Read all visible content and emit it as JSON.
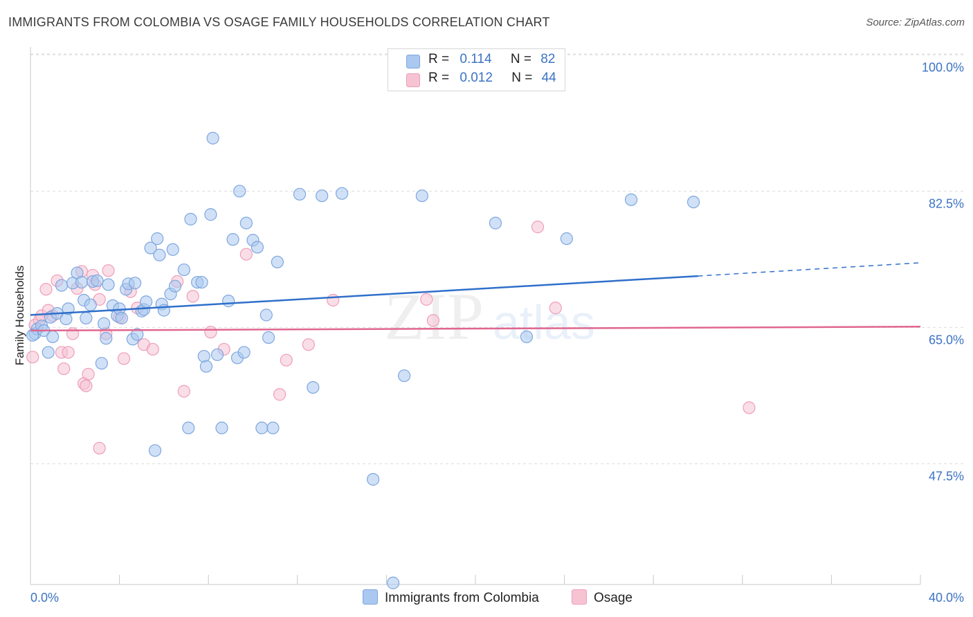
{
  "title": "IMMIGRANTS FROM COLOMBIA VS OSAGE FAMILY HOUSEHOLDS CORRELATION CHART",
  "source": "Source: ZipAtlas.com",
  "watermark": {
    "zip": "ZIP",
    "atlas": "atlas"
  },
  "colors": {
    "blue_fill": "#aac8f0",
    "blue_stroke": "#7ea6de",
    "blue_line": "#2f6fca",
    "pink_fill": "#f6c3d3",
    "pink_stroke": "#ee9db8",
    "pink_line": "#e0668f",
    "axis_label": "#3b73c4",
    "grid": "#dcdcdc"
  },
  "legend": {
    "rows": [
      {
        "r_label": "R =",
        "r_value": "0.114",
        "n_label": "N =",
        "n_value": "82"
      },
      {
        "r_label": "R =",
        "r_value": "0.012",
        "n_label": "N =",
        "n_value": "44"
      }
    ]
  },
  "bottom_legend": {
    "series1": "Immigrants from Colombia",
    "series2": "Osage"
  },
  "chart_data": {
    "type": "scatter",
    "title": "IMMIGRANTS FROM COLOMBIA VS OSAGE FAMILY HOUSEHOLDS CORRELATION CHART",
    "xlabel": "",
    "ylabel": "Family Households",
    "xlim": [
      0,
      40
    ],
    "ylim": [
      32,
      101
    ],
    "x_tick_labels": [
      "0.0%",
      "40.0%"
    ],
    "y_ticks": [
      47.5,
      65.0,
      82.5,
      100.0
    ],
    "y_tick_labels": [
      "47.5%",
      "65.0%",
      "82.5%",
      "100.0%"
    ],
    "series": [
      {
        "name": "Immigrants from Colombia",
        "R": 0.114,
        "N": 82,
        "trend": {
          "x0": 0,
          "y0": 66.6,
          "x1": 30,
          "y1": 71.6,
          "dash_to_x": 40,
          "dash_to_y": 73.3
        },
        "points": [
          [
            0.2,
            64.2
          ],
          [
            0.3,
            64.8
          ],
          [
            0.5,
            65.2
          ],
          [
            0.6,
            64.6
          ],
          [
            0.8,
            61.8
          ],
          [
            0.9,
            66.3
          ],
          [
            1.0,
            63.8
          ],
          [
            1.2,
            66.8
          ],
          [
            1.4,
            70.4
          ],
          [
            1.6,
            66.1
          ],
          [
            1.7,
            67.4
          ],
          [
            1.9,
            70.7
          ],
          [
            2.1,
            72.0
          ],
          [
            2.3,
            70.8
          ],
          [
            2.4,
            68.5
          ],
          [
            2.5,
            66.2
          ],
          [
            2.7,
            67.9
          ],
          [
            2.8,
            70.9
          ],
          [
            3.0,
            71.0
          ],
          [
            3.2,
            60.4
          ],
          [
            3.3,
            65.5
          ],
          [
            3.4,
            63.6
          ],
          [
            3.5,
            70.5
          ],
          [
            3.7,
            67.8
          ],
          [
            3.9,
            66.5
          ],
          [
            4.0,
            67.4
          ],
          [
            4.1,
            66.2
          ],
          [
            4.3,
            69.9
          ],
          [
            4.4,
            70.6
          ],
          [
            4.6,
            63.5
          ],
          [
            4.7,
            70.7
          ],
          [
            4.8,
            64.1
          ],
          [
            5.0,
            67.1
          ],
          [
            5.1,
            67.3
          ],
          [
            5.2,
            68.3
          ],
          [
            5.4,
            75.2
          ],
          [
            5.6,
            49.2
          ],
          [
            5.7,
            76.4
          ],
          [
            5.8,
            74.3
          ],
          [
            5.9,
            68.0
          ],
          [
            6.0,
            67.2
          ],
          [
            6.3,
            69.3
          ],
          [
            6.4,
            75.0
          ],
          [
            6.5,
            70.3
          ],
          [
            6.9,
            72.4
          ],
          [
            7.1,
            52.1
          ],
          [
            7.2,
            78.9
          ],
          [
            7.5,
            70.8
          ],
          [
            7.7,
            70.8
          ],
          [
            7.8,
            61.3
          ],
          [
            7.9,
            60.0
          ],
          [
            8.1,
            79.5
          ],
          [
            8.2,
            89.3
          ],
          [
            8.4,
            61.5
          ],
          [
            8.6,
            52.1
          ],
          [
            8.9,
            68.4
          ],
          [
            9.1,
            76.3
          ],
          [
            9.3,
            61.1
          ],
          [
            9.4,
            82.5
          ],
          [
            9.6,
            61.8
          ],
          [
            9.7,
            78.4
          ],
          [
            10.0,
            76.2
          ],
          [
            10.2,
            75.3
          ],
          [
            10.4,
            52.1
          ],
          [
            10.6,
            66.6
          ],
          [
            10.7,
            63.7
          ],
          [
            10.9,
            52.1
          ],
          [
            11.1,
            73.4
          ],
          [
            12.1,
            82.1
          ],
          [
            12.7,
            57.3
          ],
          [
            13.1,
            81.9
          ],
          [
            14.0,
            82.2
          ],
          [
            15.4,
            45.5
          ],
          [
            16.3,
            32.2
          ],
          [
            16.8,
            58.8
          ],
          [
            17.6,
            81.9
          ],
          [
            20.9,
            78.4
          ],
          [
            22.3,
            63.8
          ],
          [
            24.1,
            76.4
          ],
          [
            27.0,
            81.4
          ],
          [
            29.8,
            81.1
          ],
          [
            0.1,
            64.0
          ]
        ]
      },
      {
        "name": "Osage",
        "R": 0.012,
        "N": 44,
        "trend": {
          "x0": 0,
          "y0": 64.6,
          "x1": 40,
          "y1": 65.1
        },
        "points": [
          [
            0.1,
            61.2
          ],
          [
            0.2,
            65.3
          ],
          [
            0.4,
            65.9
          ],
          [
            0.5,
            66.5
          ],
          [
            0.7,
            69.9
          ],
          [
            0.8,
            67.2
          ],
          [
            1.0,
            66.5
          ],
          [
            1.2,
            71.0
          ],
          [
            1.4,
            61.8
          ],
          [
            1.5,
            59.7
          ],
          [
            1.7,
            61.8
          ],
          [
            1.9,
            64.2
          ],
          [
            2.1,
            70.0
          ],
          [
            2.3,
            72.2
          ],
          [
            2.4,
            57.8
          ],
          [
            2.5,
            57.5
          ],
          [
            2.6,
            59.0
          ],
          [
            2.8,
            71.7
          ],
          [
            2.9,
            70.5
          ],
          [
            3.1,
            68.6
          ],
          [
            3.1,
            49.5
          ],
          [
            3.4,
            64.2
          ],
          [
            3.5,
            72.3
          ],
          [
            4.0,
            66.3
          ],
          [
            4.2,
            61.0
          ],
          [
            4.5,
            69.6
          ],
          [
            4.8,
            67.5
          ],
          [
            5.1,
            62.8
          ],
          [
            5.5,
            62.2
          ],
          [
            6.6,
            70.9
          ],
          [
            6.9,
            56.8
          ],
          [
            7.3,
            69.0
          ],
          [
            8.1,
            64.4
          ],
          [
            8.7,
            62.2
          ],
          [
            9.7,
            74.4
          ],
          [
            11.2,
            56.4
          ],
          [
            11.5,
            60.8
          ],
          [
            12.5,
            62.8
          ],
          [
            13.6,
            68.5
          ],
          [
            17.8,
            68.6
          ],
          [
            18.1,
            65.9
          ],
          [
            22.8,
            77.9
          ],
          [
            23.6,
            67.5
          ],
          [
            32.3,
            54.7
          ]
        ]
      }
    ]
  }
}
